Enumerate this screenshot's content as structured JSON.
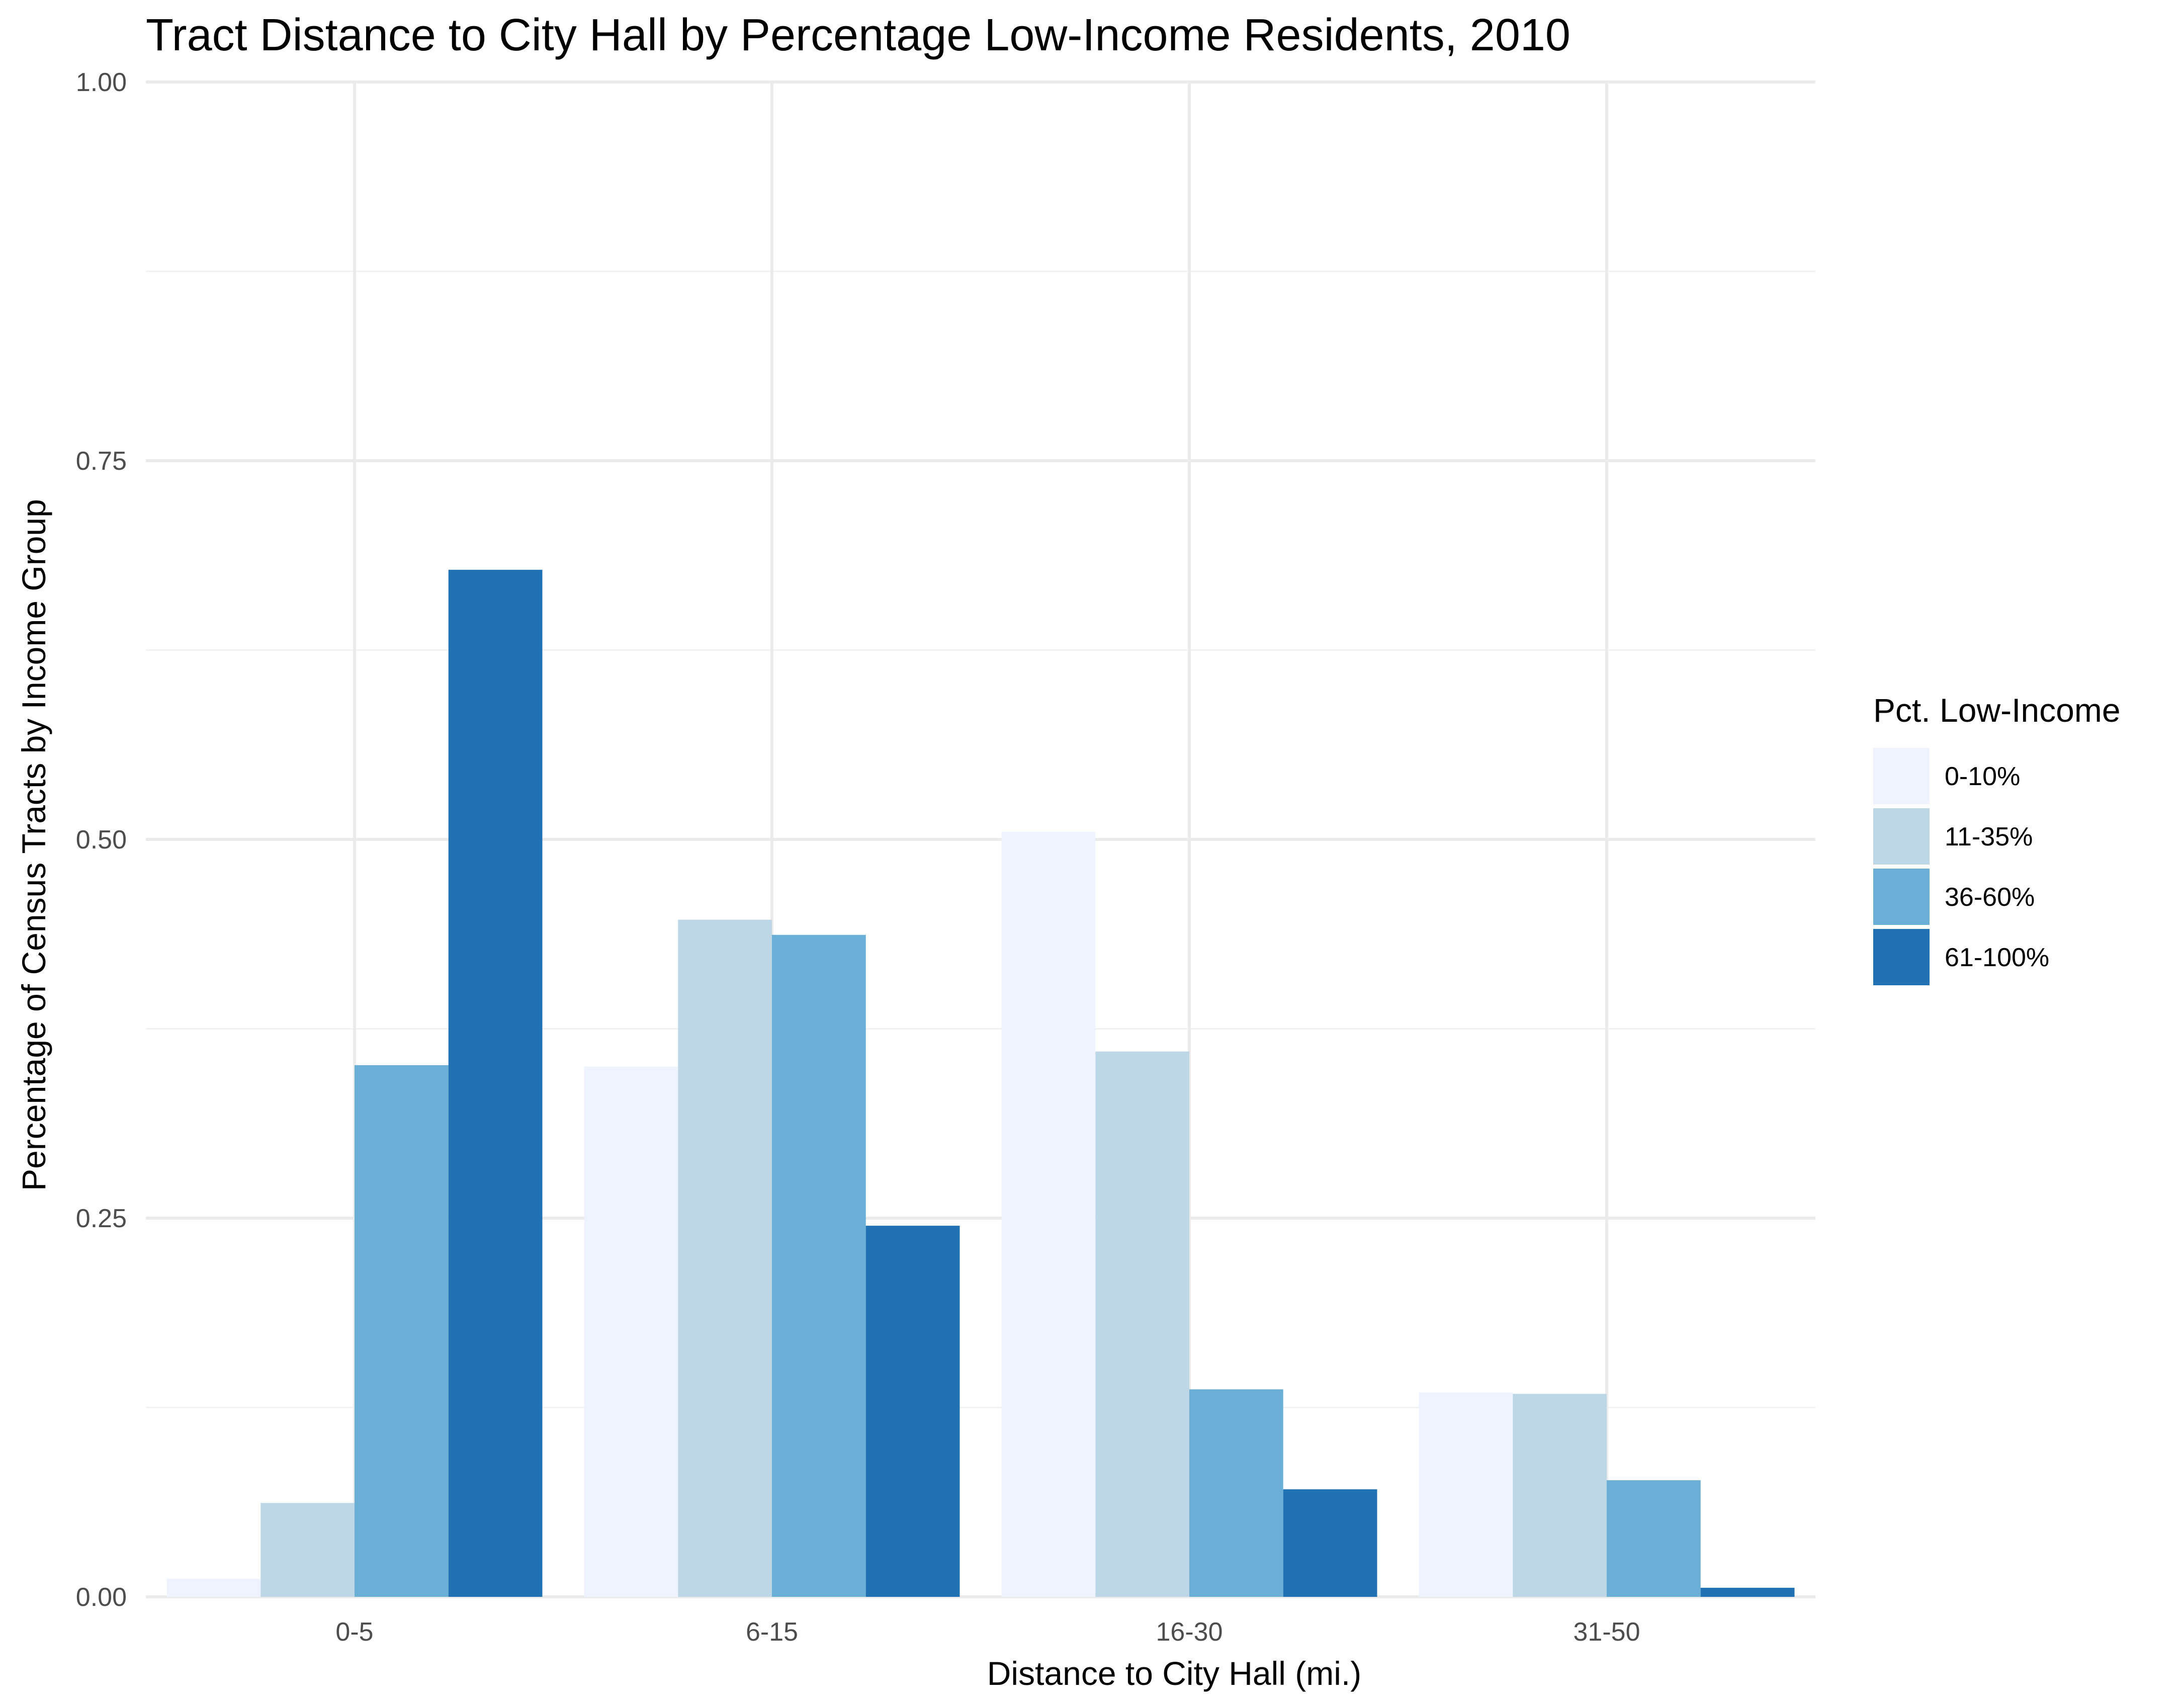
{
  "chart_data": {
    "type": "bar",
    "title": "Tract Distance to City Hall by Percentage Low-Income Residents, 2010",
    "xlabel": "Distance to City Hall (mi.)",
    "ylabel": "Percentage of Census Tracts by Income Group",
    "ylim": [
      0,
      1
    ],
    "yticks": [
      "0.00",
      "0.25",
      "0.50",
      "0.75",
      "1.00"
    ],
    "grid": true,
    "legend_title": "Pct. Low-Income",
    "legend_position": "right",
    "categories": [
      "0-5",
      "6-15",
      "16-30",
      "31-50"
    ],
    "series": [
      {
        "name": "0-10%",
        "color": "#eff3ff",
        "values": [
          0.012,
          0.35,
          0.505,
          0.135
        ]
      },
      {
        "name": "11-35%",
        "color": "#bdd7e7",
        "values": [
          0.062,
          0.447,
          0.36,
          0.134
        ]
      },
      {
        "name": "36-60%",
        "color": "#6baed6",
        "values": [
          0.351,
          0.437,
          0.137,
          0.077
        ]
      },
      {
        "name": "61-100%",
        "color": "#2171b5",
        "values": [
          0.678,
          0.245,
          0.071,
          0.006
        ]
      }
    ]
  }
}
